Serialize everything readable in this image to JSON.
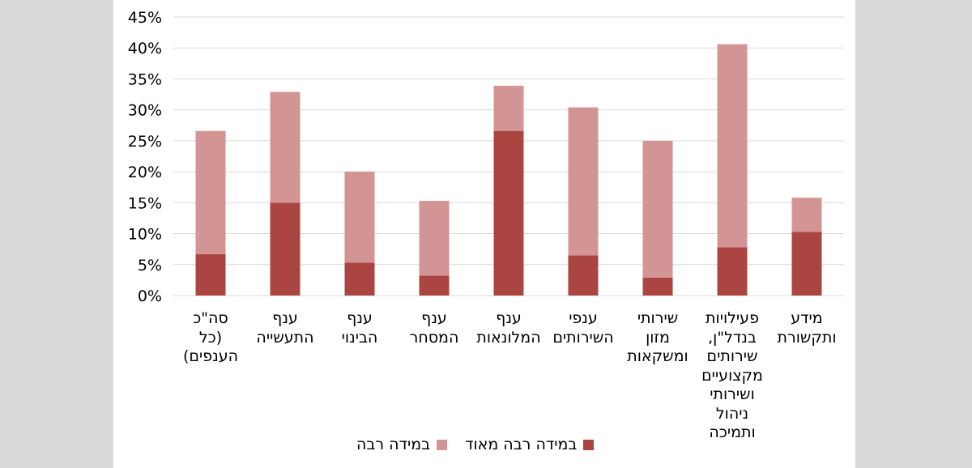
{
  "chart_data": {
    "type": "bar",
    "stacked": true,
    "categories": [
      "סה\"כ\n(כל\nהענפים)",
      "ענף\nהתעשייה",
      "ענף\nהבינוי",
      "ענף\nהמסחר",
      "ענף\nהמלונאות",
      "ענפי\nהשירותים",
      "שירותי\nמזון\nומשקאות",
      "פעילויות\nבנדל\"ן,\nשירותים\nמקצועיים\nושירותי\nניהול\nותמיכה",
      "מידע\nותקשורת"
    ],
    "series": [
      {
        "name": "במידה רבה מאוד",
        "color": "#ab4542",
        "values": [
          6.7,
          15.0,
          5.3,
          3.2,
          26.6,
          6.5,
          2.9,
          7.8,
          10.3
        ]
      },
      {
        "name": "במידה רבה",
        "color": "#d39593",
        "values": [
          19.9,
          17.9,
          14.7,
          12.1,
          7.3,
          23.9,
          22.1,
          32.8,
          5.5
        ]
      }
    ],
    "yticks": [
      "0%",
      "5%",
      "10%",
      "15%",
      "20%",
      "25%",
      "30%",
      "35%",
      "40%",
      "45%"
    ],
    "ylim": [
      0,
      45
    ],
    "grid": true,
    "legend_position": "bottom"
  }
}
